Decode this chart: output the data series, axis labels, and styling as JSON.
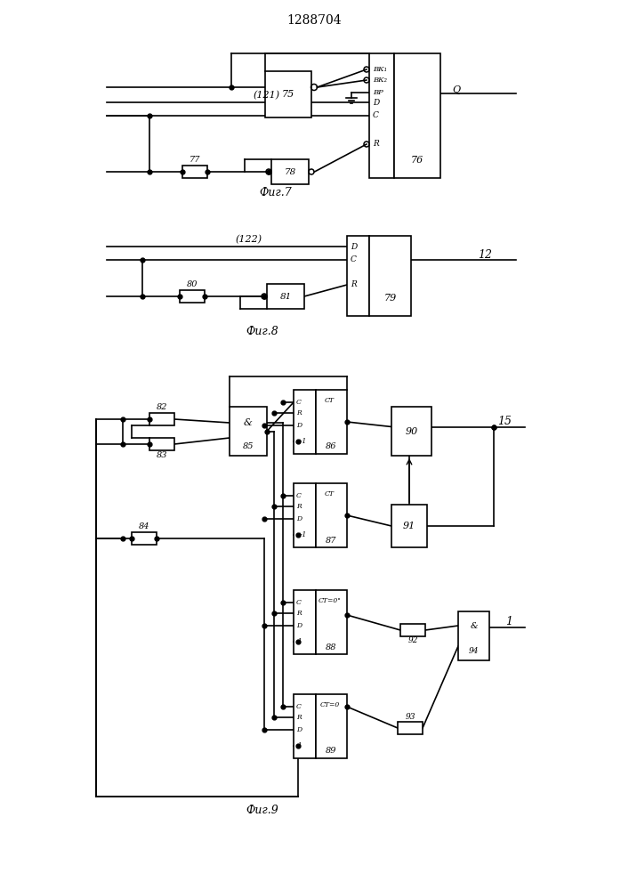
{
  "title": "1288704",
  "lw": 1.2,
  "fig7_caption": "Фиг.7",
  "fig8_caption": "Фиг.8",
  "fig9_caption": "Фиг.9"
}
